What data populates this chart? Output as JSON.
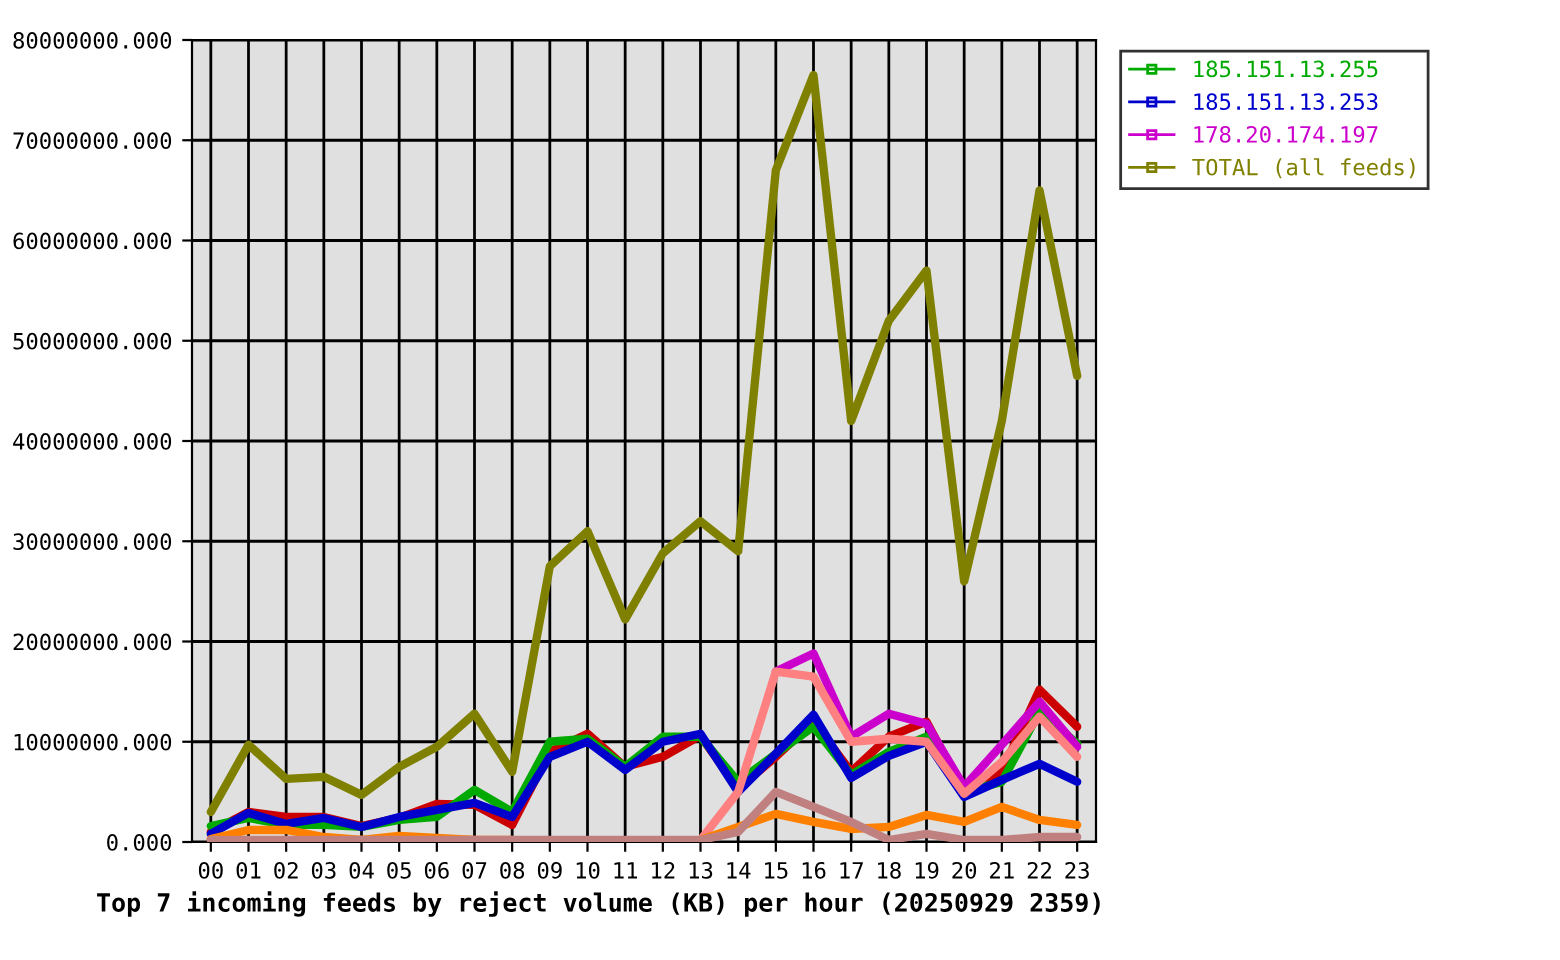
{
  "chart_data": {
    "type": "line",
    "title": "Top 7 incoming feeds by reject volume (KB) per hour (20250929 2359)",
    "categories": [
      "00",
      "01",
      "02",
      "03",
      "04",
      "05",
      "06",
      "07",
      "08",
      "09",
      "10",
      "11",
      "12",
      "13",
      "14",
      "15",
      "16",
      "17",
      "18",
      "19",
      "20",
      "21",
      "22",
      "23"
    ],
    "series": [
      {
        "color": "#cc0000",
        "values": [
          1000000,
          3000000,
          2500000,
          2500000,
          1600000,
          2400000,
          3800000,
          3700000,
          1700000,
          9000000,
          10800000,
          7500000,
          8500000,
          10600000,
          5300000,
          8500000,
          12000000,
          7000000,
          10500000,
          12000000,
          5000000,
          7000000,
          15200000,
          11500000
        ]
      },
      {
        "name": "185.151.13.255",
        "color": "#00aa00",
        "values": [
          1600000,
          2400000,
          1700000,
          1700000,
          1500000,
          2200000,
          2500000,
          5200000,
          3000000,
          10000000,
          10300000,
          7500000,
          10500000,
          10500000,
          6000000,
          8800000,
          11500000,
          6700000,
          9000000,
          10500000,
          5000000,
          6000000,
          13000000,
          9800000
        ]
      },
      {
        "name": "185.151.13.253",
        "color": "#0000cc",
        "values": [
          800000,
          2900000,
          1800000,
          2400000,
          1500000,
          2500000,
          3200000,
          3900000,
          2500000,
          8500000,
          10000000,
          7200000,
          10000000,
          10800000,
          5000000,
          8800000,
          12700000,
          6400000,
          8600000,
          10000000,
          4500000,
          6200000,
          7800000,
          6000000
        ]
      },
      {
        "name": "178.20.174.197",
        "color": "#cc00cc",
        "values": [
          null,
          null,
          null,
          null,
          null,
          null,
          null,
          null,
          null,
          null,
          null,
          null,
          null,
          null,
          null,
          17000000,
          18800000,
          10500000,
          12800000,
          11800000,
          5500000,
          9700000,
          14000000,
          9500000
        ]
      },
      {
        "color": "#ff8080",
        "values": [
          null,
          null,
          null,
          null,
          null,
          null,
          null,
          null,
          null,
          null,
          null,
          null,
          null,
          200000,
          5000000,
          17000000,
          16500000,
          10000000,
          10300000,
          10000000,
          4800000,
          8000000,
          12500000,
          8500000
        ]
      },
      {
        "color": "#ff8000",
        "values": [
          300000,
          1200000,
          1200000,
          500000,
          200000,
          600000,
          400000,
          200000,
          200000,
          null,
          null,
          null,
          null,
          200000,
          1500000,
          2800000,
          2000000,
          1300000,
          1500000,
          2700000,
          2000000,
          3500000,
          2200000,
          1700000
        ]
      },
      {
        "color": "#c08080",
        "values": [
          200000,
          200000,
          200000,
          200000,
          200000,
          200000,
          200000,
          200000,
          200000,
          200000,
          200000,
          200000,
          200000,
          200000,
          1000000,
          5000000,
          3500000,
          2000000,
          200000,
          800000,
          200000,
          200000,
          500000,
          500000
        ]
      },
      {
        "name": "TOTAL (all feeds)",
        "color": "#808000",
        "values": [
          3000000,
          9700000,
          6300000,
          6500000,
          4700000,
          7500000,
          9500000,
          12800000,
          7000000,
          27500000,
          31000000,
          22200000,
          28800000,
          32000000,
          29000000,
          67000000,
          76500000,
          42000000,
          52000000,
          57000000,
          26000000,
          42000000,
          65000000,
          46500000
        ]
      }
    ],
    "ylim": [
      0,
      80000000
    ],
    "yticks": [
      {
        "value": 0,
        "label": "0.000"
      },
      {
        "value": 10000000,
        "label": "10000000.000"
      },
      {
        "value": 20000000,
        "label": "20000000.000"
      },
      {
        "value": 30000000,
        "label": "30000000.000"
      },
      {
        "value": 40000000,
        "label": "40000000.000"
      },
      {
        "value": 50000000,
        "label": "50000000.000"
      },
      {
        "value": 60000000,
        "label": "60000000.000"
      },
      {
        "value": 70000000,
        "label": "70000000.000"
      },
      {
        "value": 80000000,
        "label": "80000000.000"
      }
    ],
    "grid": true,
    "legend": "right"
  }
}
